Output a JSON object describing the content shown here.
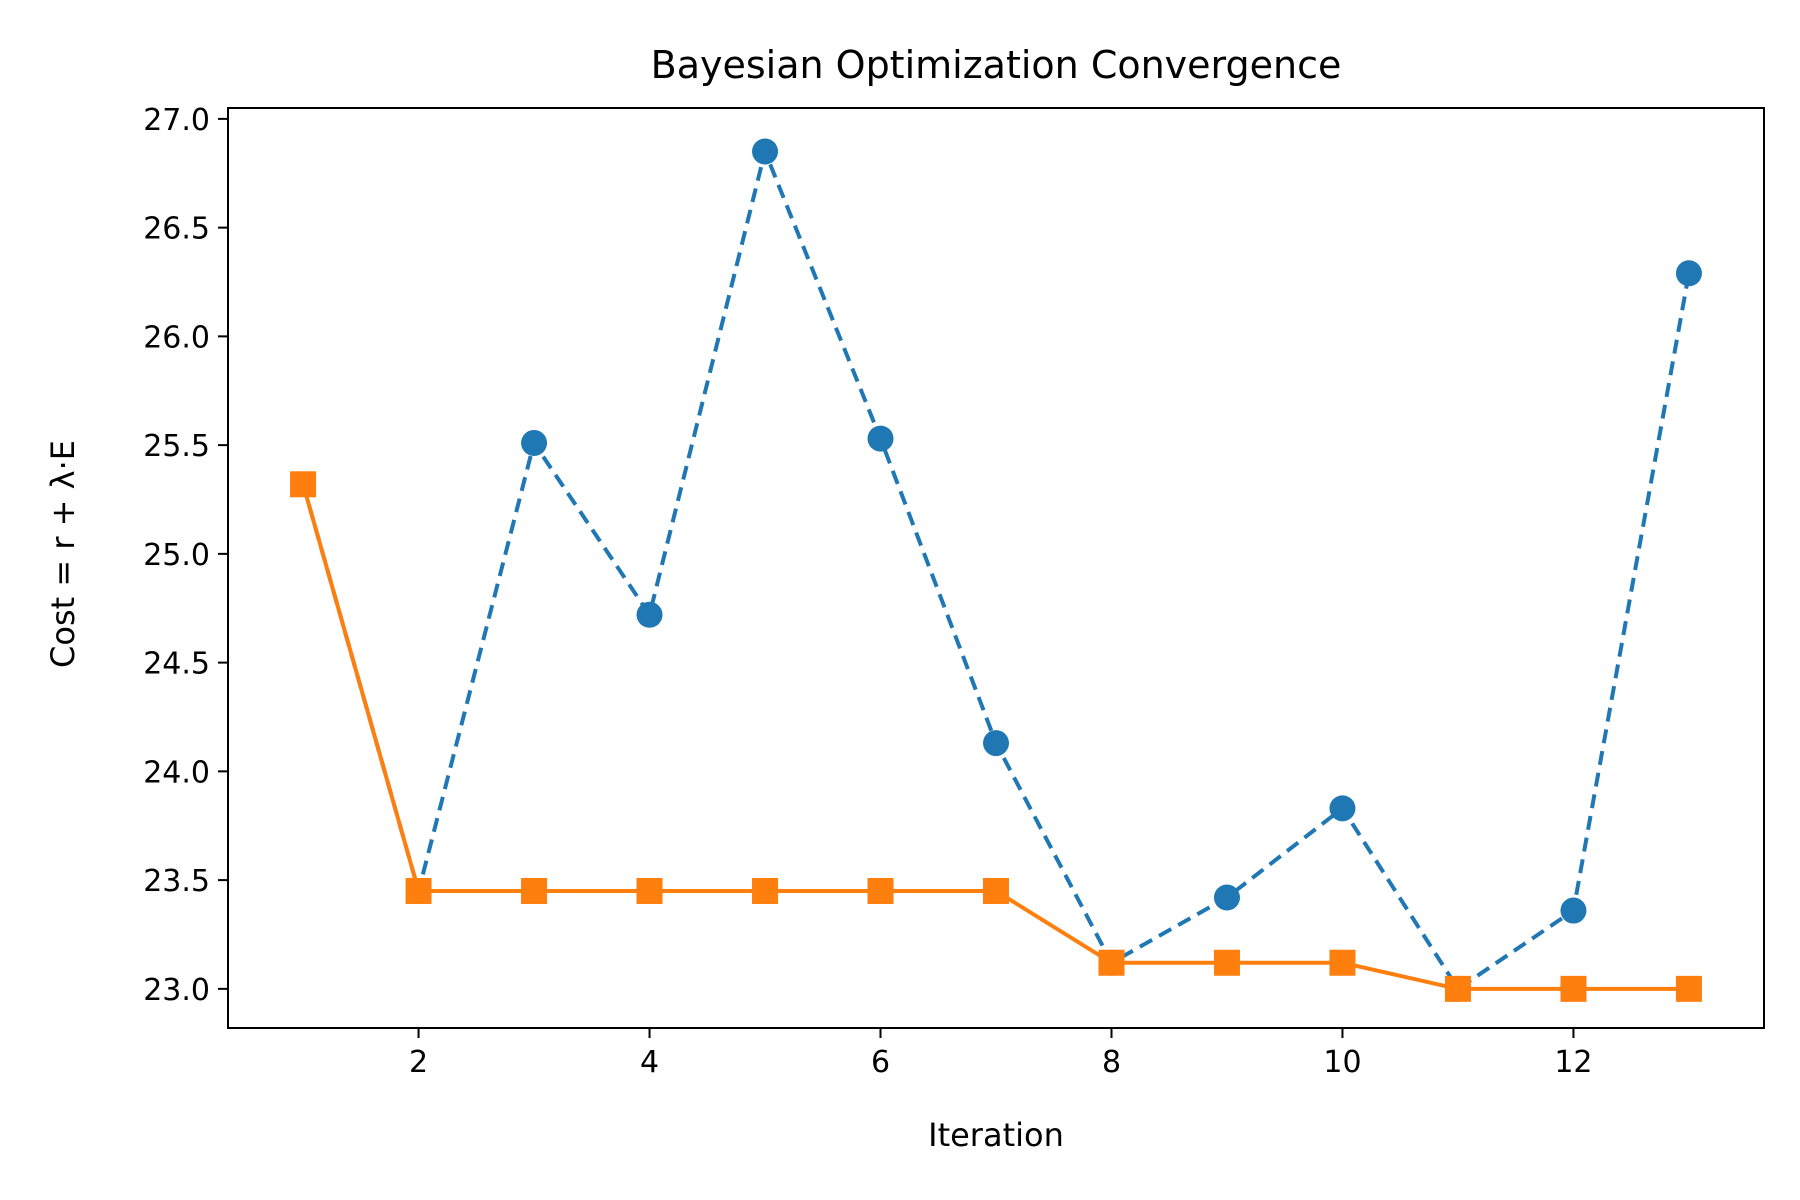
{
  "chart_data": {
    "type": "line",
    "title": "Bayesian Optimization Convergence",
    "xlabel": "Iteration",
    "ylabel": "Cost = r + λ·E",
    "xlim": [
      0.35,
      13.65
    ],
    "ylim": [
      22.82,
      27.05
    ],
    "xticks": [
      2,
      4,
      6,
      8,
      10,
      12
    ],
    "yticks": [
      23.0,
      23.5,
      24.0,
      24.5,
      25.0,
      25.5,
      26.0,
      26.5,
      27.0
    ],
    "grid": false,
    "legend": "none",
    "series": [
      {
        "style": "dashed",
        "marker": "circle",
        "color": "#1f77b4",
        "x": [
          1,
          2,
          3,
          4,
          5,
          6,
          7,
          8,
          9,
          10,
          11,
          12,
          13
        ],
        "y": [
          25.32,
          23.45,
          25.51,
          24.72,
          26.85,
          25.53,
          24.13,
          23.12,
          23.42,
          23.83,
          23.0,
          23.36,
          26.29
        ],
        "marker_from_index": 2
      },
      {
        "style": "solid",
        "marker": "square",
        "color": "#ff7f0e",
        "x": [
          1,
          2,
          3,
          4,
          5,
          6,
          7,
          8,
          9,
          10,
          11,
          12,
          13
        ],
        "y": [
          25.32,
          23.45,
          23.45,
          23.45,
          23.45,
          23.45,
          23.45,
          23.12,
          23.12,
          23.12,
          23.0,
          23.0,
          23.0
        ]
      }
    ]
  }
}
